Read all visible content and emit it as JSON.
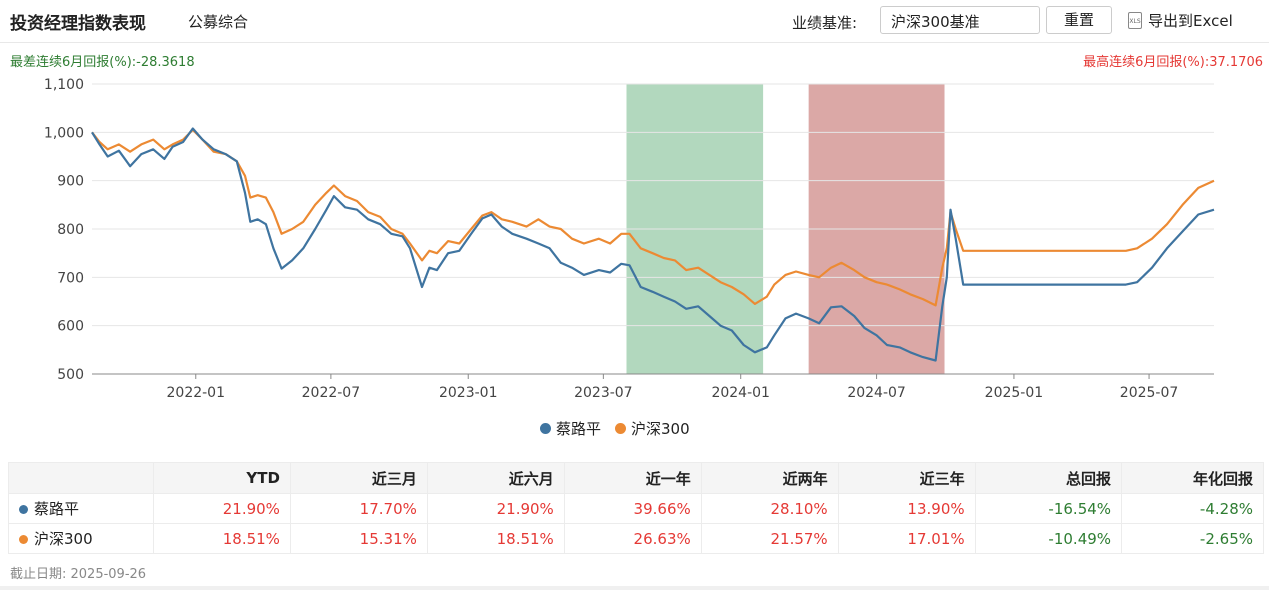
{
  "header": {
    "title": "投资经理指数表现",
    "subtab": "公募综合",
    "benchmark_label": "业绩基准:",
    "benchmark_value": "沪深300基准",
    "reset_label": "重置",
    "export_label": "导出到Excel",
    "export_icon": "xls-file-icon"
  },
  "extremes": {
    "worst": "最差连续6月回报(%):-28.3618",
    "best": "最高连续6月回报(%):37.1706",
    "worst_color": "#2e7d32",
    "best_color": "#e53935"
  },
  "chart_data": {
    "type": "line",
    "title": "",
    "xlabel": "",
    "ylabel": "",
    "ylim": [
      500,
      1100
    ],
    "yticks": [
      "500",
      "600",
      "700",
      "800",
      "900",
      "1,000",
      "1,100"
    ],
    "xticks": [
      "2022-01",
      "2022-07",
      "2023-01",
      "2023-07",
      "2024-01",
      "2024-07",
      "2025-01",
      "2025-07"
    ],
    "xrange": [
      "2021-08-15",
      "2025-09-26"
    ],
    "grid": "horizontal",
    "legend_position": "bottom",
    "highlight_bands": [
      {
        "start": "2023-08-01",
        "end": "2024-01-31",
        "color": "#b2d8be",
        "meaning": "worst"
      },
      {
        "start": "2024-04-01",
        "end": "2024-09-30",
        "color": "#dba8a6",
        "meaning": "best"
      }
    ],
    "series": [
      {
        "name": "蔡路平",
        "color": "#3f74a0",
        "points": [
          [
            "2021-08-15",
            1000
          ],
          [
            "2021-08-25",
            975
          ],
          [
            "2021-09-05",
            950
          ],
          [
            "2021-09-20",
            962
          ],
          [
            "2021-10-05",
            930
          ],
          [
            "2021-10-20",
            955
          ],
          [
            "2021-11-05",
            965
          ],
          [
            "2021-11-20",
            945
          ],
          [
            "2021-12-01",
            970
          ],
          [
            "2021-12-15",
            980
          ],
          [
            "2021-12-28",
            1008
          ],
          [
            "2022-01-10",
            985
          ],
          [
            "2022-01-25",
            965
          ],
          [
            "2022-02-10",
            955
          ],
          [
            "2022-02-25",
            940
          ],
          [
            "2022-03-08",
            875
          ],
          [
            "2022-03-15",
            815
          ],
          [
            "2022-03-25",
            820
          ],
          [
            "2022-04-05",
            810
          ],
          [
            "2022-04-15",
            760
          ],
          [
            "2022-04-26",
            718
          ],
          [
            "2022-05-10",
            735
          ],
          [
            "2022-05-25",
            760
          ],
          [
            "2022-06-10",
            800
          ],
          [
            "2022-06-25",
            840
          ],
          [
            "2022-07-05",
            868
          ],
          [
            "2022-07-20",
            845
          ],
          [
            "2022-08-05",
            840
          ],
          [
            "2022-08-20",
            820
          ],
          [
            "2022-09-05",
            810
          ],
          [
            "2022-09-20",
            790
          ],
          [
            "2022-10-05",
            785
          ],
          [
            "2022-10-15",
            760
          ],
          [
            "2022-10-31",
            680
          ],
          [
            "2022-11-10",
            720
          ],
          [
            "2022-11-20",
            715
          ],
          [
            "2022-12-05",
            750
          ],
          [
            "2022-12-20",
            755
          ],
          [
            "2023-01-05",
            790
          ],
          [
            "2023-01-20",
            822
          ],
          [
            "2023-02-01",
            830
          ],
          [
            "2023-02-15",
            805
          ],
          [
            "2023-03-01",
            790
          ],
          [
            "2023-03-20",
            780
          ],
          [
            "2023-04-05",
            770
          ],
          [
            "2023-04-20",
            760
          ],
          [
            "2023-05-05",
            730
          ],
          [
            "2023-05-20",
            720
          ],
          [
            "2023-06-05",
            705
          ],
          [
            "2023-06-25",
            715
          ],
          [
            "2023-07-10",
            710
          ],
          [
            "2023-07-25",
            728
          ],
          [
            "2023-08-05",
            725
          ],
          [
            "2023-08-20",
            680
          ],
          [
            "2023-09-05",
            670
          ],
          [
            "2023-09-20",
            660
          ],
          [
            "2023-10-05",
            650
          ],
          [
            "2023-10-20",
            635
          ],
          [
            "2023-11-05",
            640
          ],
          [
            "2023-11-20",
            620
          ],
          [
            "2023-12-05",
            600
          ],
          [
            "2023-12-20",
            590
          ],
          [
            "2024-01-05",
            560
          ],
          [
            "2024-01-20",
            545
          ],
          [
            "2024-02-05",
            555
          ],
          [
            "2024-02-15",
            580
          ],
          [
            "2024-03-01",
            615
          ],
          [
            "2024-03-15",
            625
          ],
          [
            "2024-04-01",
            615
          ],
          [
            "2024-04-15",
            605
          ],
          [
            "2024-05-01",
            638
          ],
          [
            "2024-05-15",
            640
          ],
          [
            "2024-06-01",
            620
          ],
          [
            "2024-06-15",
            595
          ],
          [
            "2024-07-01",
            580
          ],
          [
            "2024-07-15",
            560
          ],
          [
            "2024-08-01",
            555
          ],
          [
            "2024-08-15",
            545
          ],
          [
            "2024-09-01",
            535
          ],
          [
            "2024-09-18",
            528
          ],
          [
            "2024-09-27",
            640
          ],
          [
            "2024-10-03",
            700
          ],
          [
            "2024-10-08",
            840
          ],
          [
            "2024-10-15",
            780
          ],
          [
            "2024-10-25",
            685
          ],
          [
            "2024-11-15",
            685
          ],
          [
            "2025-01-31",
            685
          ],
          [
            "2025-03-31",
            685
          ],
          [
            "2025-05-31",
            685
          ],
          [
            "2025-06-15",
            690
          ],
          [
            "2025-07-05",
            720
          ],
          [
            "2025-07-25",
            760
          ],
          [
            "2025-08-15",
            795
          ],
          [
            "2025-09-05",
            830
          ],
          [
            "2025-09-26",
            840
          ]
        ]
      },
      {
        "name": "沪深300",
        "color": "#ec8a33",
        "points": [
          [
            "2021-08-15",
            1000
          ],
          [
            "2021-08-25",
            980
          ],
          [
            "2021-09-05",
            965
          ],
          [
            "2021-09-20",
            975
          ],
          [
            "2021-10-05",
            960
          ],
          [
            "2021-10-20",
            975
          ],
          [
            "2021-11-05",
            985
          ],
          [
            "2021-11-20",
            965
          ],
          [
            "2021-12-01",
            975
          ],
          [
            "2021-12-15",
            985
          ],
          [
            "2021-12-28",
            1005
          ],
          [
            "2022-01-10",
            985
          ],
          [
            "2022-01-25",
            960
          ],
          [
            "2022-02-10",
            955
          ],
          [
            "2022-02-25",
            940
          ],
          [
            "2022-03-08",
            910
          ],
          [
            "2022-03-15",
            865
          ],
          [
            "2022-03-25",
            870
          ],
          [
            "2022-04-05",
            865
          ],
          [
            "2022-04-15",
            835
          ],
          [
            "2022-04-26",
            790
          ],
          [
            "2022-05-10",
            800
          ],
          [
            "2022-05-25",
            815
          ],
          [
            "2022-06-10",
            850
          ],
          [
            "2022-06-25",
            875
          ],
          [
            "2022-07-05",
            890
          ],
          [
            "2022-07-20",
            868
          ],
          [
            "2022-08-05",
            858
          ],
          [
            "2022-08-20",
            835
          ],
          [
            "2022-09-05",
            825
          ],
          [
            "2022-09-20",
            800
          ],
          [
            "2022-10-05",
            790
          ],
          [
            "2022-10-15",
            770
          ],
          [
            "2022-10-31",
            735
          ],
          [
            "2022-11-10",
            755
          ],
          [
            "2022-11-20",
            750
          ],
          [
            "2022-12-05",
            775
          ],
          [
            "2022-12-20",
            770
          ],
          [
            "2023-01-05",
            800
          ],
          [
            "2023-01-20",
            828
          ],
          [
            "2023-02-01",
            835
          ],
          [
            "2023-02-15",
            820
          ],
          [
            "2023-03-01",
            815
          ],
          [
            "2023-03-20",
            805
          ],
          [
            "2023-04-05",
            820
          ],
          [
            "2023-04-20",
            805
          ],
          [
            "2023-05-05",
            800
          ],
          [
            "2023-05-20",
            780
          ],
          [
            "2023-06-05",
            770
          ],
          [
            "2023-06-25",
            780
          ],
          [
            "2023-07-10",
            770
          ],
          [
            "2023-07-25",
            790
          ],
          [
            "2023-08-05",
            790
          ],
          [
            "2023-08-20",
            760
          ],
          [
            "2023-09-05",
            750
          ],
          [
            "2023-09-20",
            740
          ],
          [
            "2023-10-05",
            735
          ],
          [
            "2023-10-20",
            715
          ],
          [
            "2023-11-05",
            720
          ],
          [
            "2023-11-20",
            705
          ],
          [
            "2023-12-05",
            690
          ],
          [
            "2023-12-20",
            680
          ],
          [
            "2024-01-05",
            665
          ],
          [
            "2024-01-20",
            645
          ],
          [
            "2024-02-05",
            660
          ],
          [
            "2024-02-15",
            685
          ],
          [
            "2024-03-01",
            705
          ],
          [
            "2024-03-15",
            712
          ],
          [
            "2024-04-01",
            705
          ],
          [
            "2024-04-15",
            700
          ],
          [
            "2024-05-01",
            720
          ],
          [
            "2024-05-15",
            730
          ],
          [
            "2024-06-01",
            715
          ],
          [
            "2024-06-15",
            700
          ],
          [
            "2024-07-01",
            690
          ],
          [
            "2024-07-15",
            685
          ],
          [
            "2024-08-01",
            675
          ],
          [
            "2024-08-15",
            665
          ],
          [
            "2024-09-01",
            655
          ],
          [
            "2024-09-18",
            642
          ],
          [
            "2024-09-27",
            720
          ],
          [
            "2024-10-03",
            760
          ],
          [
            "2024-10-08",
            835
          ],
          [
            "2024-10-15",
            800
          ],
          [
            "2024-10-25",
            755
          ],
          [
            "2024-11-15",
            755
          ],
          [
            "2025-01-31",
            755
          ],
          [
            "2025-03-31",
            755
          ],
          [
            "2025-05-31",
            755
          ],
          [
            "2025-06-15",
            760
          ],
          [
            "2025-07-05",
            780
          ],
          [
            "2025-07-25",
            810
          ],
          [
            "2025-08-15",
            850
          ],
          [
            "2025-09-05",
            885
          ],
          [
            "2025-09-26",
            900
          ]
        ]
      }
    ]
  },
  "table": {
    "columns": [
      "YTD",
      "近三月",
      "近六月",
      "近一年",
      "近两年",
      "近三年",
      "总回报",
      "年化回报"
    ],
    "rows": [
      {
        "name": "蔡路平",
        "color": "#3f74a0",
        "values": [
          "21.90%",
          "17.70%",
          "21.90%",
          "39.66%",
          "28.10%",
          "13.90%",
          "-16.54%",
          "-4.28%"
        ]
      },
      {
        "name": "沪深300",
        "color": "#ec8a33",
        "values": [
          "18.51%",
          "15.31%",
          "18.51%",
          "26.63%",
          "21.57%",
          "17.01%",
          "-10.49%",
          "-2.65%"
        ]
      }
    ]
  },
  "footer": {
    "as_of": "截止日期: 2025-09-26"
  }
}
